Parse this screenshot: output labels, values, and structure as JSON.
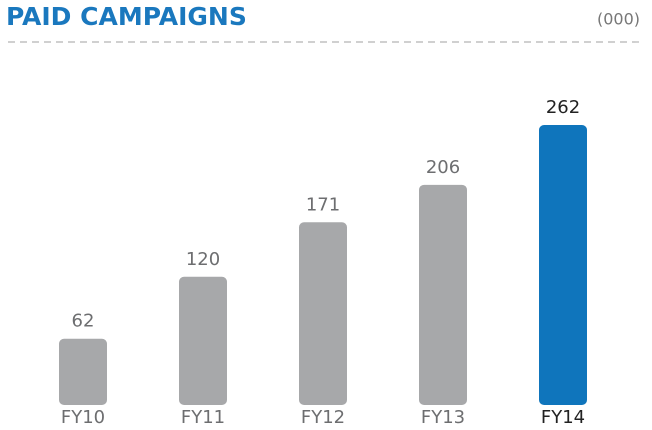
{
  "chart_data": {
    "type": "bar",
    "title": "PAID CAMPAIGNS",
    "subtitle": "(000)",
    "categories": [
      "FY10",
      "FY11",
      "FY12",
      "FY13",
      "FY14"
    ],
    "values": [
      62,
      120,
      171,
      206,
      262
    ],
    "colors": [
      "#a7a8aa",
      "#a7a8aa",
      "#a7a8aa",
      "#a7a8aa",
      "#0f75bc"
    ]
  }
}
